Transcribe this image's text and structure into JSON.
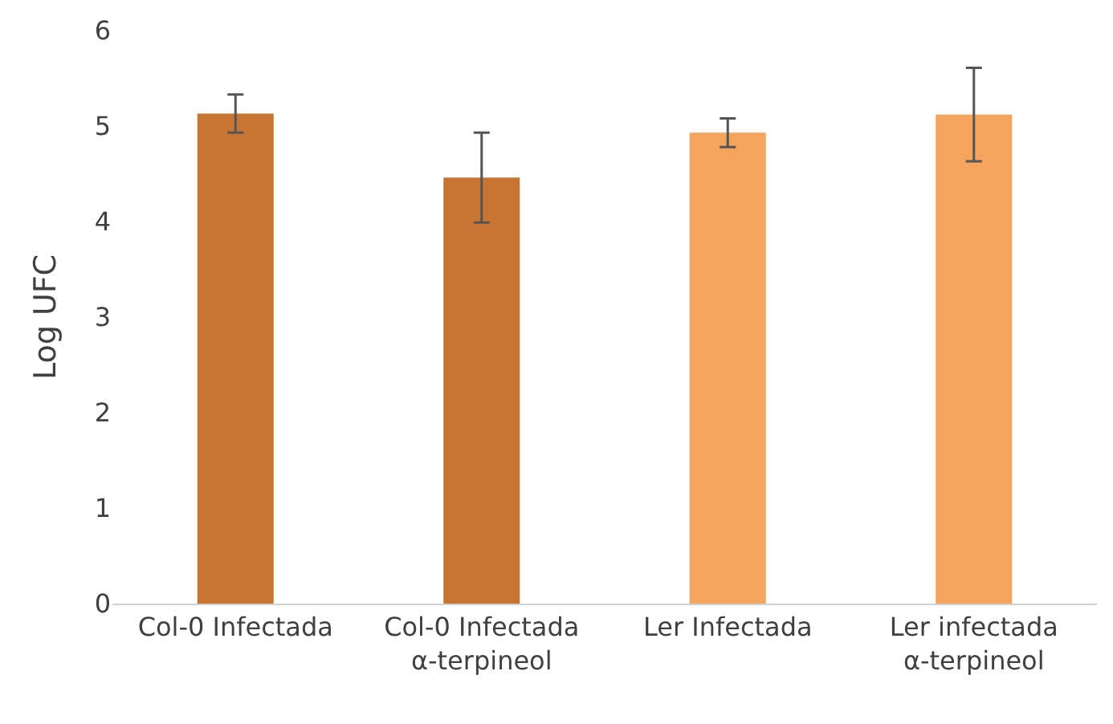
{
  "chart_data": {
    "type": "bar",
    "ylabel": "Log UFC",
    "categories": [
      "Col-0 Infectada",
      "Col-0 Infectada\nα-terpineol",
      "Ler Infectada",
      "Ler infectada\nα-terpineol"
    ],
    "values": [
      5.13,
      4.46,
      4.93,
      5.12
    ],
    "errors": [
      0.2,
      0.47,
      0.15,
      0.49
    ],
    "colors": [
      "#c87533",
      "#c87533",
      "#f4a45c",
      "#f4a45c"
    ],
    "ylim": [
      0,
      6
    ],
    "yticks": [
      0,
      1,
      2,
      3,
      4,
      5,
      6
    ]
  }
}
